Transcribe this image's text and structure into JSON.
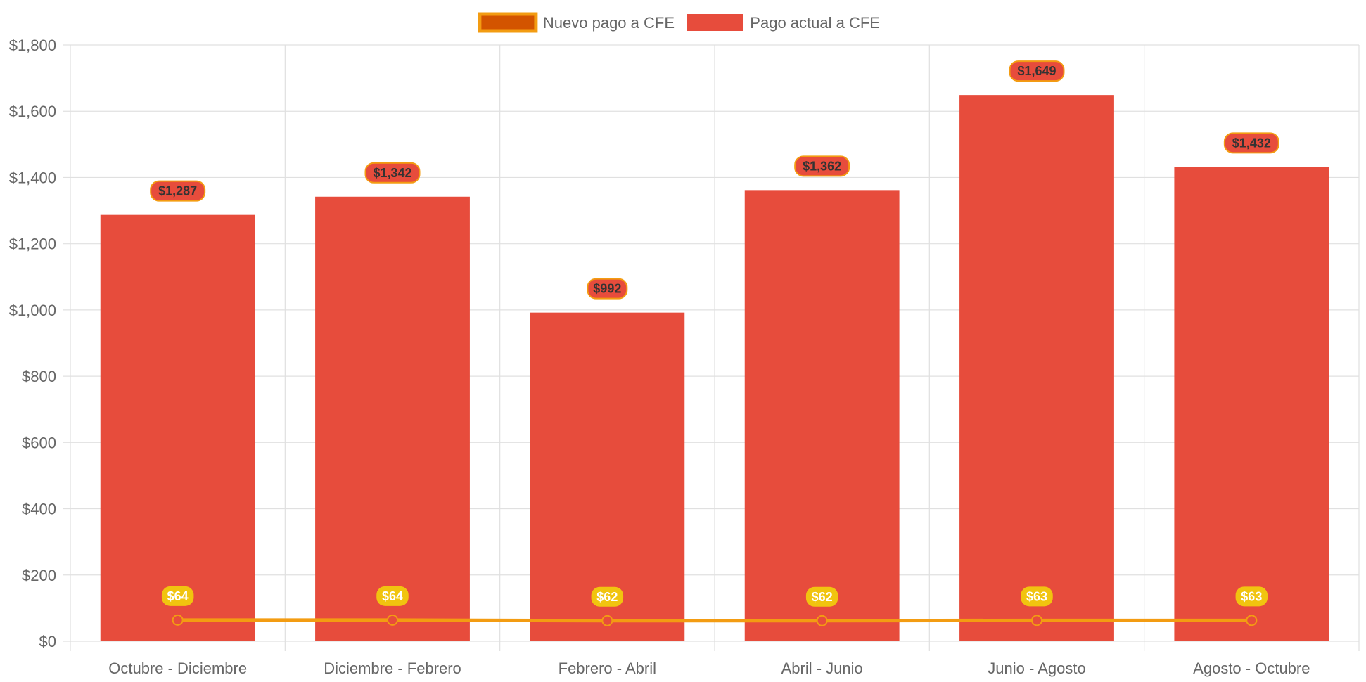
{
  "chart_data": {
    "type": "bar",
    "categories": [
      "Octubre - Diciembre",
      "Diciembre - Febrero",
      "Febrero - Abril",
      "Abril - Junio",
      "Junio - Agosto",
      "Agosto - Octubre"
    ],
    "series": [
      {
        "name": "Nuevo pago a CFE",
        "type": "line",
        "values": [
          64,
          64,
          62,
          62,
          63,
          63
        ],
        "labels": [
          "$64",
          "$64",
          "$62",
          "$62",
          "$63",
          "$63"
        ],
        "color": "#f39c12",
        "fill": "#d35400"
      },
      {
        "name": "Pago actual a CFE",
        "type": "bar",
        "values": [
          1287,
          1342,
          992,
          1362,
          1649,
          1432
        ],
        "labels": [
          "$1,287",
          "$1,342",
          "$992",
          "$1,362",
          "$1,649",
          "$1,432"
        ],
        "color": "#e74c3c"
      }
    ],
    "ylim": [
      0,
      1800
    ],
    "yticks": [
      0,
      200,
      400,
      600,
      800,
      1000,
      1200,
      1400,
      1600,
      1800
    ],
    "ytick_labels": [
      "$0",
      "$200",
      "$400",
      "$600",
      "$800",
      "$1,000",
      "$1,200",
      "$1,400",
      "$1,600",
      "$1,800"
    ],
    "grid": true,
    "legend": "top-center",
    "colors": {
      "grid": "#e0e0e0",
      "text": "#666666",
      "bar_label_border": "#f39c12",
      "line_label_bg": "#f1c40f"
    }
  }
}
